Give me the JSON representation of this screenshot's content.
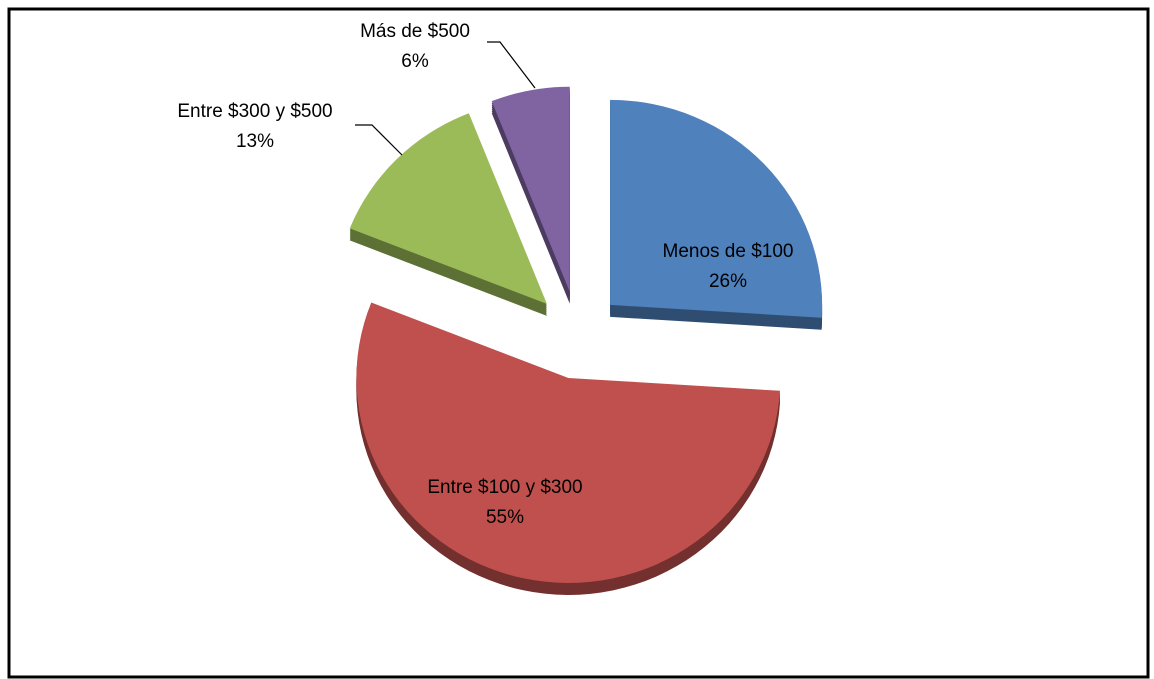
{
  "chart_data": {
    "type": "pie",
    "categories": [
      "Menos de $100",
      "Entre $100 y $300",
      "Entre $300 y $500",
      "Más de $500"
    ],
    "values": [
      26,
      55,
      13,
      6
    ],
    "value_labels": [
      "26%",
      "55%",
      "13%",
      "6%"
    ],
    "colors": [
      "#4f81bd",
      "#c0504d",
      "#9bbb59",
      "#8064a2"
    ]
  }
}
